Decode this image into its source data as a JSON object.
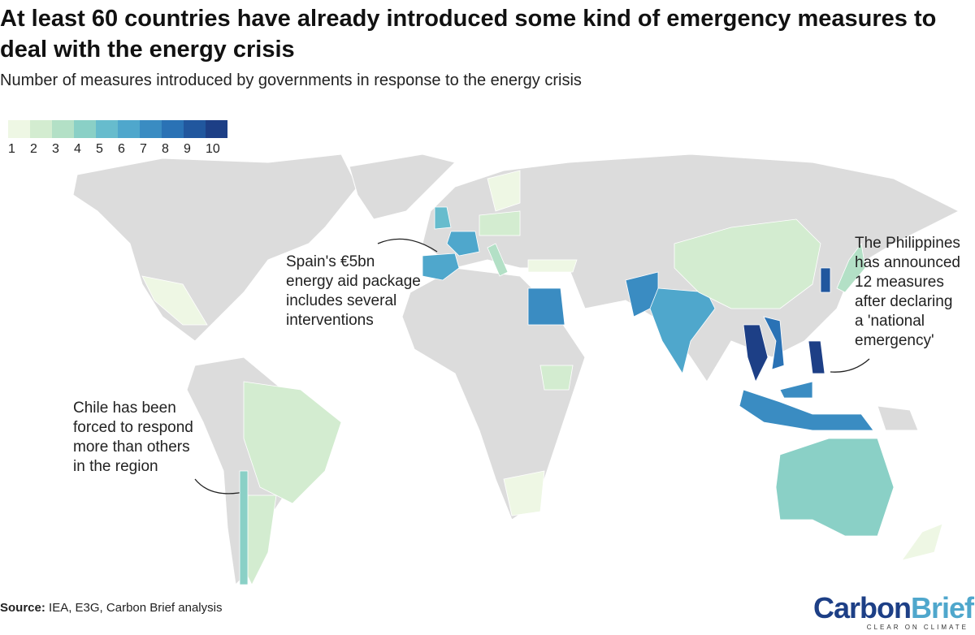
{
  "header": {
    "title": "At least 60 countries have already introduced some kind of emergency measures to deal with the energy crisis",
    "subtitle": "Number of measures introduced by governments in response to the energy crisis"
  },
  "legend": {
    "labels": [
      1,
      2,
      3,
      4,
      5,
      6,
      7,
      8,
      9,
      10
    ],
    "colors": [
      "#eef7e4",
      "#d3ecd0",
      "#b3e0c6",
      "#8ad0c6",
      "#67bccd",
      "#4fa7cc",
      "#3a8cc2",
      "#2a72b5",
      "#21579e",
      "#1d3f86"
    ]
  },
  "map": {
    "values": [
      6,
      6,
      5,
      7,
      7,
      6,
      2,
      9,
      3,
      10,
      8,
      10,
      7,
      7,
      4,
      1,
      2,
      2,
      4,
      1,
      2,
      1,
      2,
      1,
      3,
      1
    ]
  },
  "annotations": [
    [
      "Spain's €5bn",
      "energy aid package",
      "includes several",
      "interventions"
    ],
    [
      "The Philippines",
      "has announced",
      "12 measures",
      "after declaring",
      "a 'national",
      "emergency'"
    ],
    [
      "Chile has been",
      "forced to respond",
      "more than others",
      "in the region"
    ]
  ],
  "footer": {
    "source_label": "Source:",
    "source": "IEA, E3G, Carbon Brief analysis",
    "logo_a": "Carbon",
    "logo_b": "Brief",
    "tagline": "CLEAR ON CLIMATE"
  }
}
